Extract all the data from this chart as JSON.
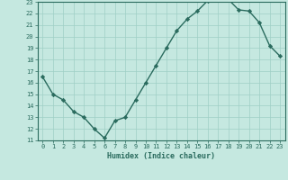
{
  "x": [
    0,
    1,
    2,
    3,
    4,
    5,
    6,
    7,
    8,
    9,
    10,
    11,
    12,
    13,
    14,
    15,
    16,
    17,
    18,
    19,
    20,
    21,
    22,
    23
  ],
  "y": [
    16.5,
    15.0,
    14.5,
    13.5,
    13.0,
    12.0,
    11.2,
    12.7,
    13.0,
    14.5,
    16.0,
    17.5,
    19.0,
    20.5,
    21.5,
    22.2,
    23.1,
    23.2,
    23.2,
    22.3,
    22.2,
    21.2,
    19.2,
    18.3
  ],
  "xlabel": "Humidex (Indice chaleur)",
  "ylim": [
    11,
    23
  ],
  "xlim": [
    -0.5,
    23.5
  ],
  "yticks": [
    11,
    12,
    13,
    14,
    15,
    16,
    17,
    18,
    19,
    20,
    21,
    22,
    23
  ],
  "xticks": [
    0,
    1,
    2,
    3,
    4,
    5,
    6,
    7,
    8,
    9,
    10,
    11,
    12,
    13,
    14,
    15,
    16,
    17,
    18,
    19,
    20,
    21,
    22,
    23
  ],
  "line_color": "#2a6b5e",
  "marker": "D",
  "bg_color": "#c5e8e0",
  "grid_color": "#9fcfc5",
  "tick_color": "#2a6b5e",
  "label_color": "#2a6b5e",
  "marker_size": 2.2,
  "line_width": 1.0
}
